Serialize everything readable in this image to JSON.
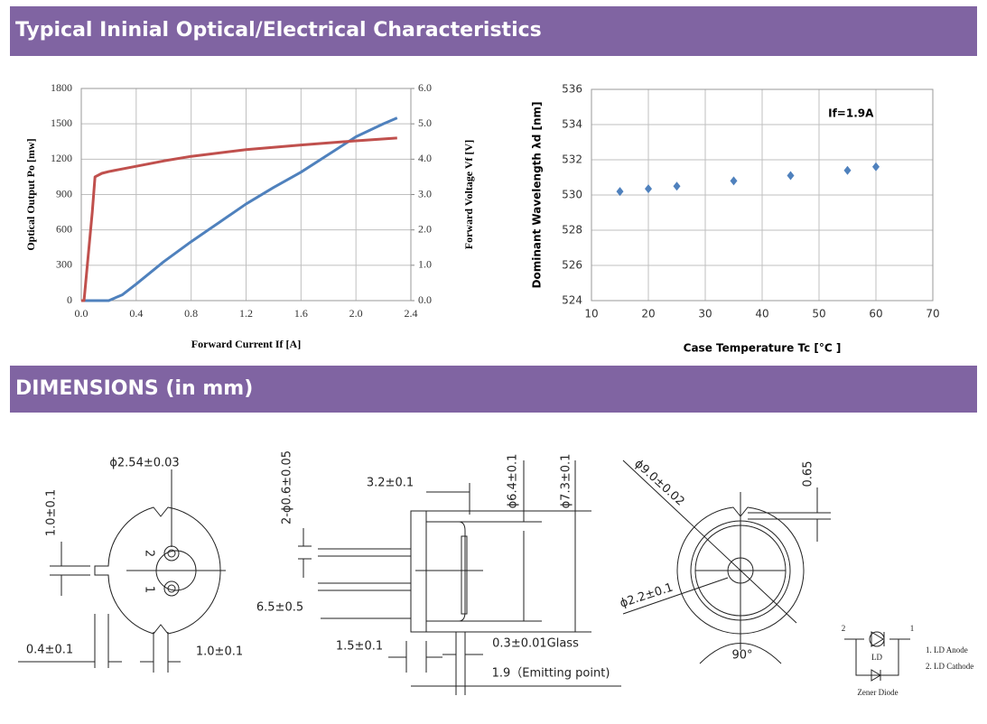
{
  "headers": [
    "Typical Ininial Optical/Electrical Characteristics",
    "DIMENSIONS (in mm)"
  ],
  "chart_data": [
    {
      "type": "line",
      "xlabel": "Forward Current If [A]",
      "ylabel": "Optical Output Po [mw]",
      "y2label": "Forward Voltage Vf [V]",
      "xlim": [
        0,
        2.4
      ],
      "xticks": [
        {
          "value": 0,
          "label": "0.0"
        },
        0.4,
        0.8,
        1.2,
        1.6,
        {
          "value": 2,
          "label": "2.0"
        },
        2.4
      ],
      "ylim": [
        0,
        1800
      ],
      "yticks": [
        0,
        300,
        600,
        900,
        1200,
        1500,
        1800
      ],
      "y2lim": [
        0,
        6
      ],
      "y2ticks": [
        {
          "value": 0,
          "label": "0.0"
        },
        {
          "value": 1,
          "label": "1.0"
        },
        {
          "value": 2,
          "label": "2.0"
        },
        {
          "value": 3,
          "label": "3.0"
        },
        {
          "value": 4,
          "label": "4.0"
        },
        {
          "value": 5,
          "label": "5.0"
        },
        {
          "value": 6,
          "label": "6.0"
        }
      ],
      "grid": true,
      "series": [
        {
          "color": "#4f81bd",
          "x": [
            0,
            0.2,
            0.3,
            0.4,
            0.6,
            0.8,
            1.0,
            1.2,
            1.4,
            1.6,
            1.8,
            2.0,
            2.2,
            2.3
          ],
          "values": [
            0,
            0,
            50,
            140,
            330,
            500,
            660,
            820,
            960,
            1090,
            1240,
            1390,
            1500,
            1550
          ]
        },
        {
          "color": "#c0504d",
          "axis": "y2",
          "x": [
            0,
            0.02,
            0.08,
            0.1,
            0.15,
            0.2,
            0.4,
            0.6,
            0.8,
            1.2,
            1.6,
            2.0,
            2.3
          ],
          "values": [
            0,
            0,
            2.5,
            3.5,
            3.6,
            3.65,
            3.8,
            3.95,
            4.08,
            4.27,
            4.4,
            4.52,
            4.6
          ]
        }
      ]
    },
    {
      "type": "scatter",
      "xlabel": "Case Temperature Tc [°C ]",
      "ylabel": "Dominant Wavelength  λd [nm]",
      "annotation": "If=1.9A",
      "xlim": [
        10,
        70
      ],
      "xticks": [
        10,
        20,
        30,
        40,
        50,
        60,
        70
      ],
      "ylim": [
        524,
        536
      ],
      "yticks": [
        524,
        526,
        528,
        530,
        532,
        534,
        536
      ],
      "grid": true,
      "color": "#4f81bd",
      "x": [
        15,
        20,
        25,
        35,
        45,
        55,
        60
      ],
      "values": [
        530.2,
        530.35,
        530.5,
        530.8,
        531.1,
        531.4,
        531.6
      ]
    }
  ],
  "dimensions": {
    "labels": [
      "ϕ2.54±0.03",
      "1.0±0.1",
      "2",
      "1",
      "0.4±0.1",
      "1.0±0.1",
      "2-ϕ0.6±0.05",
      "3.2±0.1",
      "ϕ6.4±0.1",
      "ϕ7.3±0.1",
      "6.5±0.5",
      "1.5±0.1",
      "0.3±0.01Glass",
      "1.9（Emitting point)",
      "ϕ9.0±0.02",
      "0.65",
      "ϕ2.2±0.1",
      "90°",
      "2",
      "1",
      "LD",
      "1. LD Anode",
      "2. LD Cathode",
      "Zener Diode"
    ]
  }
}
